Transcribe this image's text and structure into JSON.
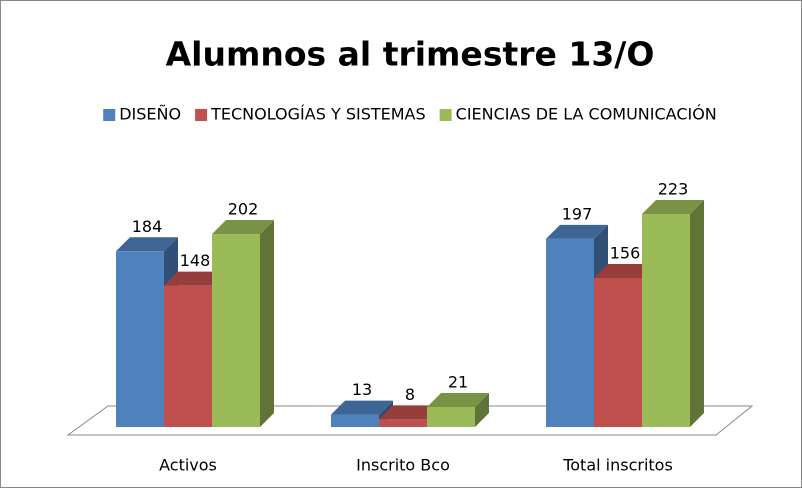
{
  "chart_data": {
    "type": "bar3d",
    "title": "Alumnos al trimestre 13/O",
    "categories": [
      "Activos",
      "Inscrito Bco",
      "Total inscritos"
    ],
    "series": [
      {
        "name": "DISEÑO",
        "color": "#4f81bd",
        "values": [
          184,
          13,
          197
        ]
      },
      {
        "name": "TECNOLOGÍAS Y SISTEMAS",
        "color": "#c0504d",
        "values": [
          148,
          8,
          156
        ]
      },
      {
        "name": "CIENCIAS DE LA COMUNICACIÓN",
        "color": "#9bbb59",
        "values": [
          202,
          21,
          223
        ]
      }
    ],
    "legend": "top"
  }
}
